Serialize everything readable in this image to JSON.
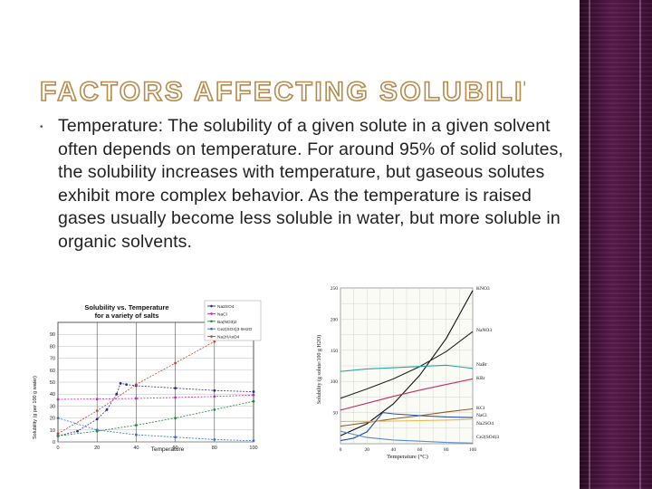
{
  "slide": {
    "title": "FACTORS AFFECTING SOLUBILITY",
    "bullet_marker": "•",
    "paragraph": "Temperature: The solubility of a given solute in a given solvent often depends on temperature. For around 95% of solid solutes, the solubility increases with temperature, but gaseous solutes exhibit more complex behavior. As the temperature is raised gases usually become less soluble in water, but more soluble in organic solvents.",
    "colors": {
      "title_outline": "#b58a4a",
      "sidebar": "#4a153f",
      "text": "#222222"
    }
  },
  "chart_data": [
    {
      "type": "line",
      "title": "Solubility vs. Temperature for a variety of salts",
      "xlabel": "Temperature",
      "ylabel": "Solubility (g per 100 g water)",
      "xlim": [
        0,
        100
      ],
      "ylim": [
        0,
        100
      ],
      "x_ticks": [
        "0",
        "20",
        "40",
        "60",
        "80",
        "100"
      ],
      "y_ticks": [
        "0",
        "10",
        "20",
        "30",
        "40",
        "50",
        "60",
        "70",
        "80",
        "90"
      ],
      "grid": true,
      "legend_position": "top-right",
      "series": [
        {
          "name": "Na2SO4",
          "color": "#2a2a8a",
          "x": [
            0,
            10,
            20,
            25,
            30,
            32,
            35,
            40,
            60,
            80,
            100
          ],
          "y": [
            5,
            9,
            19,
            27,
            40,
            49,
            48,
            47,
            45,
            43,
            42
          ]
        },
        {
          "name": "NaCl",
          "color": "#c026c0",
          "x": [
            0,
            20,
            40,
            60,
            80,
            100
          ],
          "y": [
            35.6,
            35.9,
            36.4,
            37.1,
            38,
            39.2
          ]
        },
        {
          "name": "Ba(NO3)2",
          "color": "#1f8a3a",
          "x": [
            0,
            20,
            40,
            60,
            80,
            100
          ],
          "y": [
            5,
            9,
            14,
            20,
            27,
            34
          ]
        },
        {
          "name": "Ce2(SO4)3·9H2O",
          "color": "#2a6fd0",
          "x": [
            0,
            20,
            40,
            60,
            80,
            100
          ],
          "y": [
            20,
            10,
            6,
            4,
            2,
            1
          ]
        },
        {
          "name": "Na2HAsO4",
          "color": "#d03a2a",
          "x": [
            0,
            20,
            40,
            60,
            80,
            100
          ],
          "y": [
            7,
            26,
            48,
            66,
            84,
            100
          ]
        }
      ]
    },
    {
      "type": "line",
      "xlabel": "Temperature (°C)",
      "ylabel": "Solubility (g solute/100 g H2O)",
      "xlim": [
        0,
        100
      ],
      "ylim": [
        0,
        250
      ],
      "x_ticks": [
        "0",
        "20",
        "40",
        "60",
        "80",
        "100"
      ],
      "y_ticks": [
        "0",
        "50",
        "100",
        "150",
        "200",
        "250"
      ],
      "grid": true,
      "series": [
        {
          "name": "KNO3",
          "color": "#111111",
          "x": [
            0,
            20,
            40,
            60,
            80,
            100
          ],
          "y": [
            13,
            32,
            64,
            110,
            169,
            246
          ]
        },
        {
          "name": "NaNO3",
          "color": "#222222",
          "x": [
            0,
            20,
            40,
            60,
            80,
            100
          ],
          "y": [
            73,
            88,
            104,
            124,
            148,
            180
          ]
        },
        {
          "name": "NaBr",
          "color": "#2aa6a0",
          "x": [
            0,
            20,
            40,
            60,
            80,
            100
          ],
          "y": [
            116,
            120,
            122,
            124,
            126,
            121
          ]
        },
        {
          "name": "KBr",
          "color": "#c0306a",
          "x": [
            0,
            20,
            40,
            60,
            80,
            100
          ],
          "y": [
            54,
            65,
            76,
            86,
            95,
            104
          ]
        },
        {
          "name": "KCl",
          "color": "#8a5a2a",
          "x": [
            0,
            20,
            40,
            60,
            80,
            100
          ],
          "y": [
            28,
            34,
            40,
            45,
            51,
            56
          ]
        },
        {
          "name": "NaCl",
          "color": "#e3b84a",
          "x": [
            0,
            20,
            40,
            60,
            80,
            100
          ],
          "y": [
            35.7,
            35.9,
            36.4,
            37.1,
            38,
            39.2
          ]
        },
        {
          "name": "Na2SO4",
          "color": "#2a4fa0",
          "x": [
            0,
            10,
            20,
            32,
            40,
            60,
            80,
            100
          ],
          "y": [
            5,
            9,
            19,
            50,
            48,
            45,
            43,
            42
          ]
        },
        {
          "name": "Ce2(SO4)3",
          "color": "#5a8acc",
          "x": [
            0,
            20,
            40,
            60,
            80,
            100
          ],
          "y": [
            20,
            10,
            6,
            4,
            2,
            1
          ]
        }
      ]
    }
  ]
}
